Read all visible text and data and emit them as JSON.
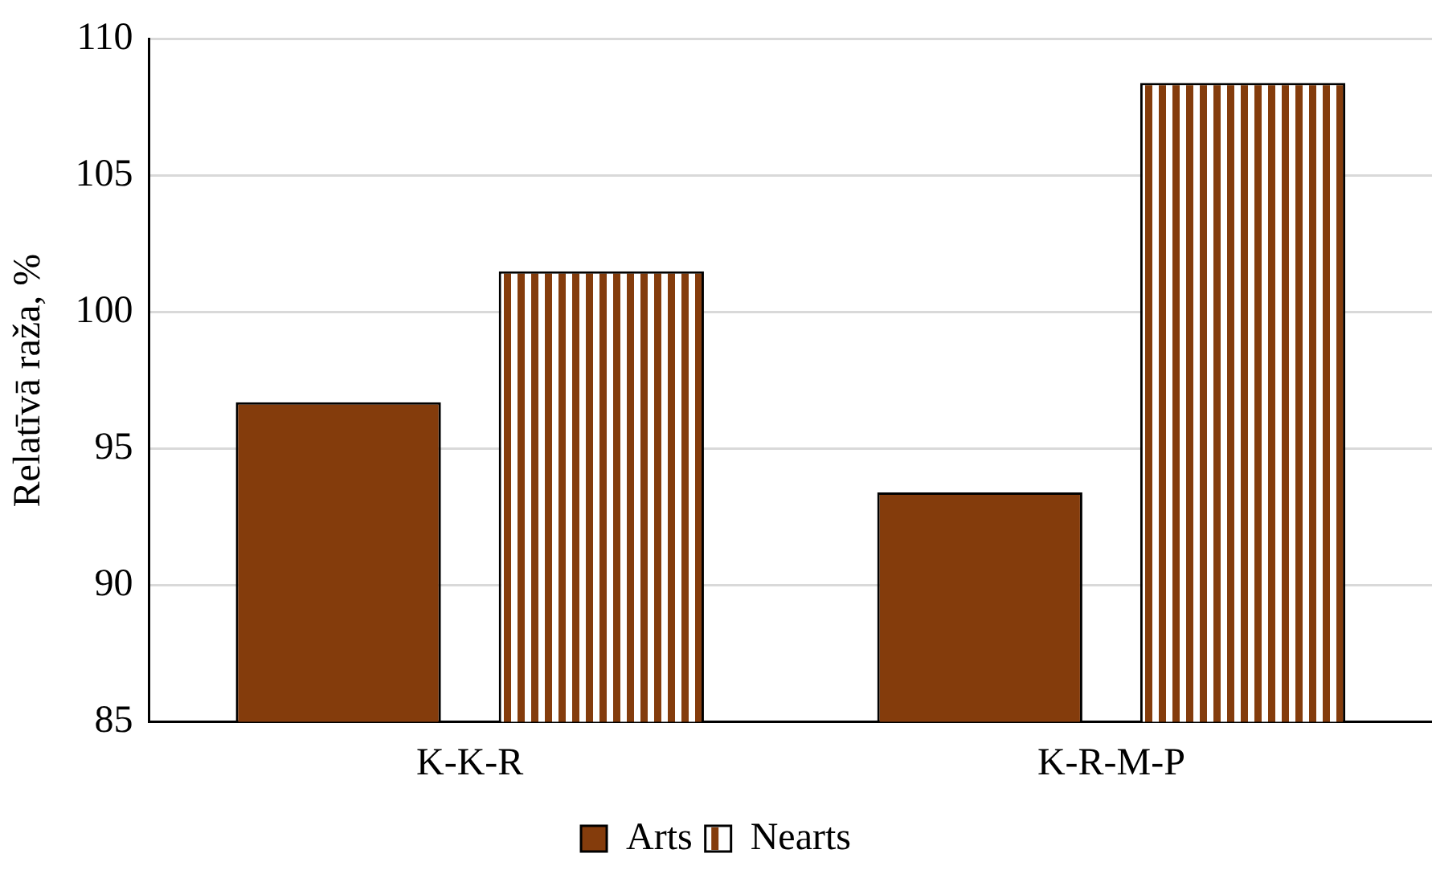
{
  "chart_data": {
    "type": "bar",
    "ylabel": "Relatīvā raža, %",
    "categories": [
      "K-K-R",
      "K-R-M-P"
    ],
    "series": [
      {
        "name": "Arts",
        "color": "#843c0c",
        "values": [
          96.7,
          93.4
        ]
      },
      {
        "name": "Nearts",
        "color": "#843c0c",
        "values": [
          101.5,
          108.4
        ]
      }
    ],
    "ylim": [
      85,
      110
    ],
    "yticks": [
      85,
      90,
      95,
      100,
      105,
      110
    ],
    "grid": "y",
    "legend": "bottom"
  }
}
